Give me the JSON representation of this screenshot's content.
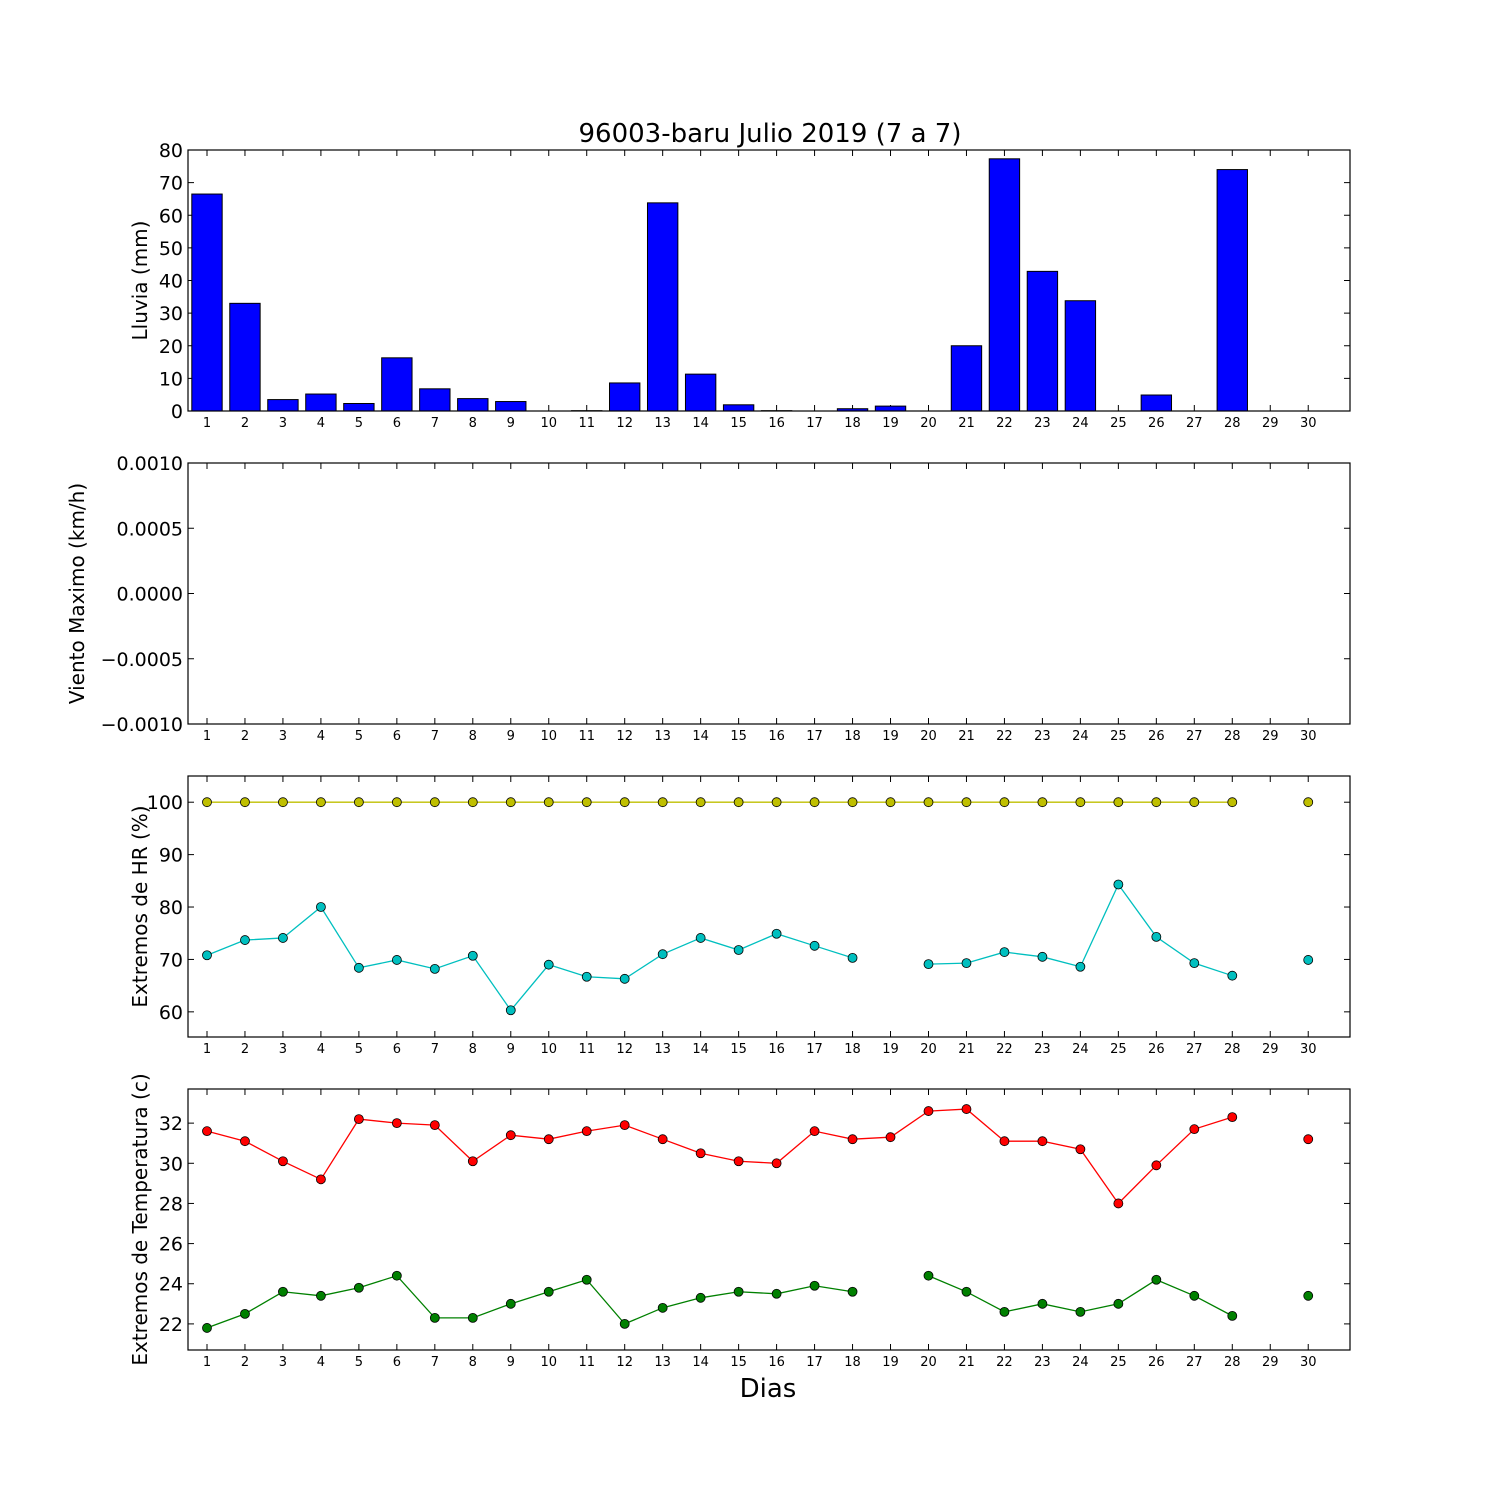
{
  "title": "96003-baru Julio 2019  (7 a 7)",
  "xlabel": "Dias",
  "colors": {
    "rain": "#0000ff",
    "hr_max": "#bfbf00",
    "hr_min": "#00bfbf",
    "temp_max": "#ff0000",
    "temp_min": "#008000"
  },
  "chart_data": [
    {
      "type": "bar",
      "id": "lluvia",
      "ylabel": "Lluvia (mm)",
      "ylim": [
        0,
        80
      ],
      "yticks": [
        "0",
        "10",
        "20",
        "30",
        "40",
        "50",
        "60",
        "70",
        "80"
      ],
      "categories": [
        "1",
        "2",
        "3",
        "4",
        "5",
        "6",
        "7",
        "8",
        "9",
        "10",
        "11",
        "12",
        "13",
        "14",
        "15",
        "16",
        "17",
        "18",
        "19",
        "20",
        "21",
        "22",
        "23",
        "24",
        "25",
        "26",
        "27",
        "28",
        "29",
        "30"
      ],
      "values": [
        66.5,
        33,
        3.5,
        5.2,
        2.3,
        16.3,
        6.8,
        3.8,
        2.9,
        0,
        0.1,
        8.6,
        63.8,
        11.3,
        1.9,
        0.1,
        0,
        0.7,
        1.5,
        0,
        20,
        77.3,
        42.8,
        33.8,
        0,
        4.9,
        0,
        74,
        0,
        0
      ]
    },
    {
      "type": "line",
      "id": "viento",
      "ylabel": "Viento Maximo (km/h)",
      "ylim": [
        -0.001,
        0.001
      ],
      "yticks": [
        "−0.0010",
        "−0.0005",
        "0.0000",
        "0.0005",
        "0.0010"
      ],
      "categories": [
        "1",
        "2",
        "3",
        "4",
        "5",
        "6",
        "7",
        "8",
        "9",
        "10",
        "11",
        "12",
        "13",
        "14",
        "15",
        "16",
        "17",
        "18",
        "19",
        "20",
        "21",
        "22",
        "23",
        "24",
        "25",
        "26",
        "27",
        "28",
        "29",
        "30"
      ],
      "series": []
    },
    {
      "type": "line",
      "id": "hr",
      "ylabel": "Extremos de HR (%)",
      "ylim": [
        55.2,
        105
      ],
      "yticks": [
        "60",
        "70",
        "80",
        "90",
        "100"
      ],
      "categories": [
        "1",
        "2",
        "3",
        "4",
        "5",
        "6",
        "7",
        "8",
        "9",
        "10",
        "11",
        "12",
        "13",
        "14",
        "15",
        "16",
        "17",
        "18",
        "19",
        "20",
        "21",
        "22",
        "23",
        "24",
        "25",
        "26",
        "27",
        "28",
        "29",
        "30"
      ],
      "series": [
        {
          "color": "#bfbf00",
          "values": [
            100,
            100,
            100,
            100,
            100,
            100,
            100,
            100,
            100,
            100,
            100,
            100,
            100,
            100,
            100,
            100,
            100,
            100,
            100,
            100,
            100,
            100,
            100,
            100,
            100,
            100,
            100,
            100,
            null,
            100
          ]
        },
        {
          "color": "#00bfbf",
          "values": [
            70.8,
            73.7,
            74.1,
            80,
            68.4,
            69.9,
            68.2,
            70.7,
            60.3,
            69,
            66.7,
            66.3,
            71,
            74.1,
            71.8,
            74.9,
            72.6,
            70.3,
            null,
            69.1,
            69.3,
            71.4,
            70.5,
            68.6,
            84.3,
            74.3,
            69.3,
            66.9,
            null,
            69.9
          ]
        }
      ]
    },
    {
      "type": "line",
      "id": "temperatura",
      "ylabel": "Extremos de Temperatura (c)",
      "ylim": [
        20.7,
        33.7
      ],
      "yticks": [
        "22",
        "24",
        "26",
        "28",
        "30",
        "32"
      ],
      "categories": [
        "1",
        "2",
        "3",
        "4",
        "5",
        "6",
        "7",
        "8",
        "9",
        "10",
        "11",
        "12",
        "13",
        "14",
        "15",
        "16",
        "17",
        "18",
        "19",
        "20",
        "21",
        "22",
        "23",
        "24",
        "25",
        "26",
        "27",
        "28",
        "29",
        "30"
      ],
      "series": [
        {
          "color": "#ff0000",
          "values": [
            31.6,
            31.1,
            30.1,
            29.2,
            32.2,
            32,
            31.9,
            30.1,
            31.4,
            31.2,
            31.6,
            31.9,
            31.2,
            30.5,
            30.1,
            30,
            31.6,
            31.2,
            31.3,
            32.6,
            32.7,
            31.1,
            31.1,
            30.7,
            28,
            29.9,
            31.7,
            32.3,
            null,
            31.2
          ]
        },
        {
          "color": "#008000",
          "values": [
            21.8,
            22.5,
            23.6,
            23.4,
            23.8,
            24.4,
            22.3,
            22.3,
            23,
            23.6,
            24.2,
            22,
            22.8,
            23.3,
            23.6,
            23.5,
            23.9,
            23.6,
            null,
            24.4,
            23.6,
            22.6,
            23,
            22.6,
            23,
            24.2,
            23.4,
            22.4,
            null,
            23.4
          ]
        }
      ]
    }
  ]
}
